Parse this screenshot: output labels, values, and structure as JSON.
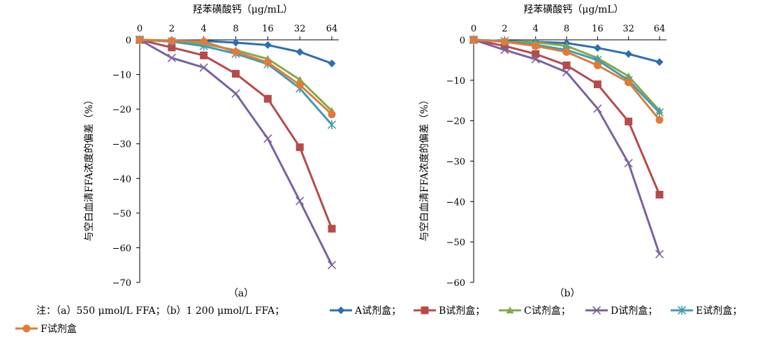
{
  "chart_data": [
    {
      "type": "line",
      "panel_label": "（a）",
      "title": "羟苯磺酸钙（μg/mL）",
      "xlabel": "羟苯磺酸钙（μg/mL）",
      "ylabel": "与空白血清FFA浓度的偏差（%）",
      "x": [
        "0",
        "2",
        "4",
        "8",
        "16",
        "32",
        "64"
      ],
      "yticks": [
        "0",
        "-10",
        "-20",
        "-30",
        "-40",
        "-50",
        "-60",
        "-70"
      ],
      "ylim": [
        -70,
        0
      ],
      "x_axis_position": "top",
      "grid": false,
      "series": [
        {
          "name": "A试剂盒",
          "color": "#2e6db4",
          "marker": "diamond",
          "values": [
            0,
            -0.2,
            -0.3,
            -0.8,
            -1.5,
            -3.5,
            -6.8
          ]
        },
        {
          "name": "B试剂盒",
          "color": "#b84a4a",
          "marker": "square",
          "values": [
            0,
            -2.2,
            -4.5,
            -9.8,
            -17.0,
            -31.0,
            -54.5
          ]
        },
        {
          "name": "C试剂盒",
          "color": "#86a94a",
          "marker": "triangle",
          "values": [
            0,
            -0.3,
            -1.2,
            -3.0,
            -5.5,
            -11.5,
            -20.5
          ]
        },
        {
          "name": "D试剂盒",
          "color": "#7a62a0",
          "marker": "x",
          "values": [
            0,
            -5.2,
            -8.0,
            -15.5,
            -28.5,
            -46.5,
            -65.0
          ]
        },
        {
          "name": "E试剂盒",
          "color": "#3f9bb8",
          "marker": "star",
          "values": [
            0,
            -0.5,
            -1.8,
            -4.0,
            -7.0,
            -14.0,
            -24.5
          ]
        },
        {
          "name": "F试剂盒",
          "color": "#e07b39",
          "marker": "circle",
          "values": [
            0,
            -0.3,
            -0.5,
            -3.5,
            -6.5,
            -13.0,
            -21.5
          ]
        }
      ]
    },
    {
      "type": "line",
      "panel_label": "（b）",
      "title": "羟苯磺酸钙（μg/mL）",
      "xlabel": "羟苯磺酸钙（μg/mL）",
      "ylabel": "与空白血清FFA浓度的偏差（%）",
      "x": [
        "0",
        "2",
        "4",
        "8",
        "16",
        "32",
        "64"
      ],
      "yticks": [
        "0",
        "-10",
        "-20",
        "-30",
        "-40",
        "-50",
        "-60"
      ],
      "ylim": [
        -60,
        0
      ],
      "x_axis_position": "top",
      "grid": false,
      "series": [
        {
          "name": "A试剂盒",
          "color": "#2e6db4",
          "marker": "diamond",
          "values": [
            0,
            -0.3,
            -0.5,
            -0.8,
            -2.0,
            -3.5,
            -5.5
          ]
        },
        {
          "name": "B试剂盒",
          "color": "#b84a4a",
          "marker": "square",
          "values": [
            0,
            -1.5,
            -3.5,
            -6.3,
            -11.0,
            -20.2,
            -38.3
          ]
        },
        {
          "name": "C试剂盒",
          "color": "#86a94a",
          "marker": "triangle",
          "values": [
            0,
            -0.3,
            -0.6,
            -1.5,
            -4.5,
            -9.0,
            -17.5
          ]
        },
        {
          "name": "D试剂盒",
          "color": "#7a62a0",
          "marker": "x",
          "values": [
            0,
            -2.5,
            -4.8,
            -8.0,
            -17.0,
            -30.5,
            -53.0
          ]
        },
        {
          "name": "E试剂盒",
          "color": "#3f9bb8",
          "marker": "star",
          "values": [
            0,
            -0.3,
            -1.2,
            -2.5,
            -5.0,
            -10.0,
            -18.0
          ]
        },
        {
          "name": "F试剂盒",
          "color": "#e07b39",
          "marker": "circle",
          "values": [
            0,
            -0.5,
            -1.5,
            -3.0,
            -6.3,
            -10.5,
            -19.8
          ]
        }
      ]
    }
  ],
  "legend": {
    "note": "注：（a）550 μmol/L FFA；（b）1 200 μmol/L FFA；",
    "separator": "；",
    "items": [
      {
        "label": "A试剂盒",
        "color": "#2e6db4",
        "marker": "diamond"
      },
      {
        "label": "B试剂盒",
        "color": "#b84a4a",
        "marker": "square"
      },
      {
        "label": "C试剂盒",
        "color": "#86a94a",
        "marker": "triangle"
      },
      {
        "label": "D试剂盒",
        "color": "#7a62a0",
        "marker": "x"
      },
      {
        "label": "E试剂盒",
        "color": "#3f9bb8",
        "marker": "star"
      },
      {
        "label": "F试剂盒",
        "color": "#e07b39",
        "marker": "circle"
      }
    ]
  }
}
